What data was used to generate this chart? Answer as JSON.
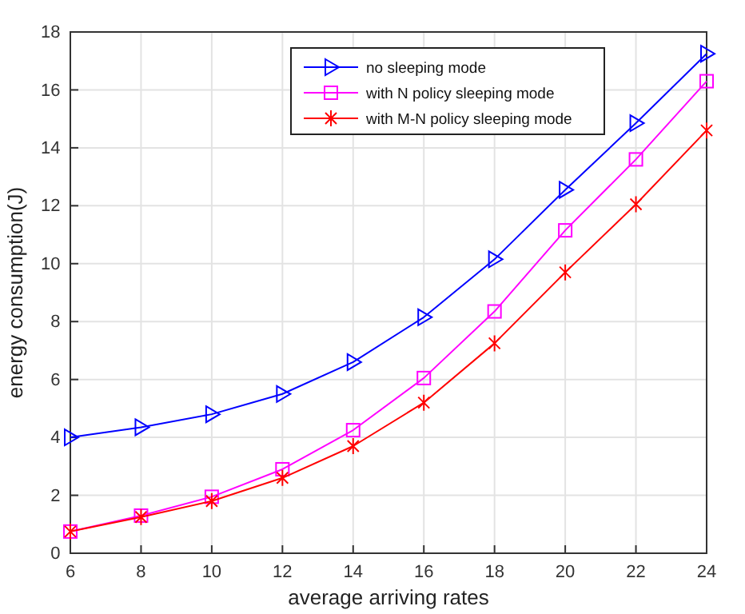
{
  "chart_data": {
    "type": "line",
    "xlabel": "average arriving rates",
    "ylabel": "energy consumption(J)",
    "x": [
      6,
      8,
      10,
      12,
      14,
      16,
      18,
      20,
      22,
      24
    ],
    "series": [
      {
        "name": "no sleeping mode",
        "color": "#0000ff",
        "marker": "triangle",
        "values": [
          4.0,
          4.35,
          4.8,
          5.5,
          6.6,
          8.15,
          10.15,
          12.55,
          14.85,
          17.25
        ]
      },
      {
        "name": "with N policy sleeping mode",
        "color": "#ff00ff",
        "marker": "square",
        "values": [
          0.75,
          1.3,
          1.95,
          2.9,
          4.25,
          6.05,
          8.35,
          11.15,
          13.6,
          16.3
        ]
      },
      {
        "name": "with M-N policy sleeping mode",
        "color": "#ff0000",
        "marker": "cross",
        "values": [
          0.75,
          1.25,
          1.8,
          2.6,
          3.7,
          5.2,
          7.25,
          9.7,
          12.05,
          14.6
        ]
      }
    ],
    "xlim": [
      6,
      24
    ],
    "xticks": [
      6,
      8,
      10,
      12,
      14,
      16,
      18,
      20,
      22,
      24
    ],
    "ylim": [
      0,
      18
    ],
    "yticks": [
      0,
      2,
      4,
      6,
      8,
      10,
      12,
      14,
      16,
      18
    ],
    "grid": true,
    "legend": "top right",
    "line_style": "solid"
  }
}
